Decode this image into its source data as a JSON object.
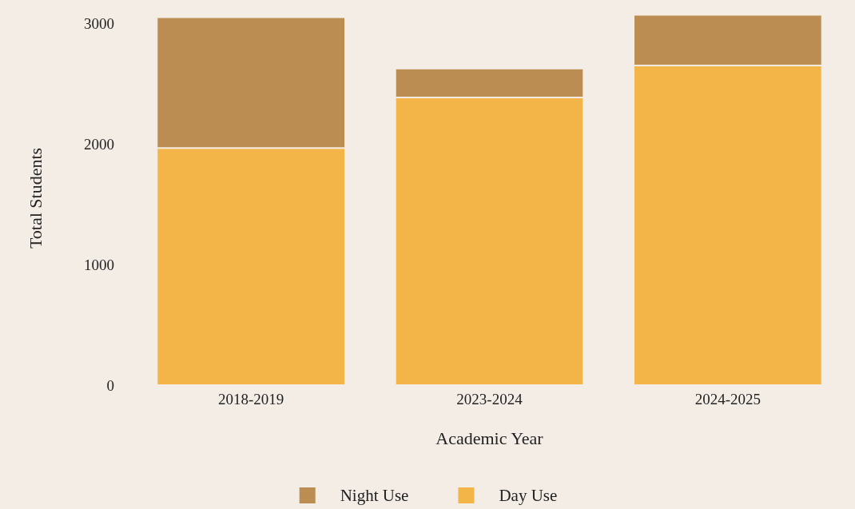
{
  "chart_data": {
    "type": "bar",
    "stacked": true,
    "xlabel": "Academic Year",
    "ylabel": "Total Students",
    "categories": [
      "2018-2019",
      "2023-2024",
      "2024-2025"
    ],
    "series": [
      {
        "name": "Day Use",
        "color": "#f3b547",
        "values": [
          1965,
          2385,
          2650
        ]
      },
      {
        "name": "Night Use",
        "color": "#bb8d52",
        "values": [
          1085,
          240,
          420
        ]
      }
    ],
    "ylim": [
      0,
      3100
    ],
    "yticks": [
      0,
      1000,
      2000,
      3000
    ],
    "grid": false,
    "legend": "bottom"
  }
}
